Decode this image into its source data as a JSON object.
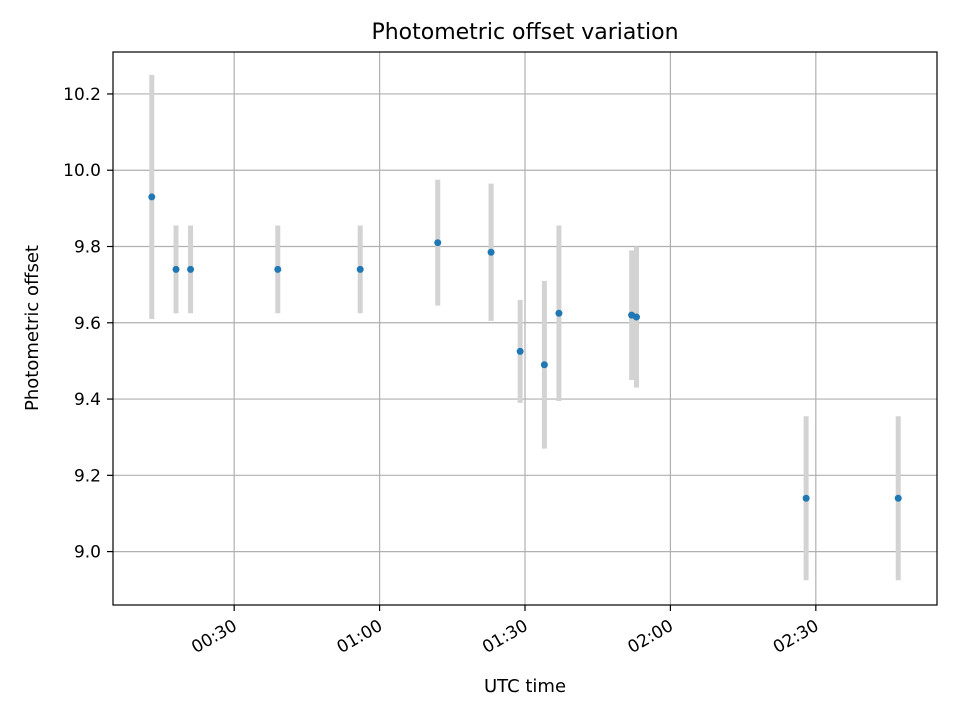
{
  "chart_data": {
    "type": "scatter",
    "title": "Photometric offset variation",
    "xlabel": "UTC time",
    "ylabel": "Photometric offset",
    "x_ticks": [
      "00:30",
      "01:00",
      "01:30",
      "02:00",
      "02:30"
    ],
    "y_ticks": [
      "9.0",
      "9.2",
      "9.4",
      "9.6",
      "9.8",
      "10.0",
      "10.2"
    ],
    "xlim": [
      "00:05",
      "02:55"
    ],
    "ylim": [
      8.86,
      10.31
    ],
    "grid": true,
    "point_color": "#1f77b4",
    "errorbar_color": "#d3d3d3",
    "points": [
      {
        "x": "00:13",
        "y": 9.93,
        "err": 0.32
      },
      {
        "x": "00:18",
        "y": 9.74,
        "err": 0.115
      },
      {
        "x": "00:21",
        "y": 9.74,
        "err": 0.115
      },
      {
        "x": "00:39",
        "y": 9.74,
        "err": 0.115
      },
      {
        "x": "00:56",
        "y": 9.74,
        "err": 0.115
      },
      {
        "x": "01:12",
        "y": 9.81,
        "err": 0.165
      },
      {
        "x": "01:23",
        "y": 9.785,
        "err": 0.18
      },
      {
        "x": "01:29",
        "y": 9.525,
        "err": 0.135
      },
      {
        "x": "01:34",
        "y": 9.49,
        "err": 0.22
      },
      {
        "x": "01:37",
        "y": 9.625,
        "err": 0.23
      },
      {
        "x": "01:52",
        "y": 9.62,
        "err": 0.17
      },
      {
        "x": "01:53",
        "y": 9.615,
        "err": 0.185
      },
      {
        "x": "02:28",
        "y": 9.14,
        "err": 0.215
      },
      {
        "x": "02:47",
        "y": 9.14,
        "err": 0.215
      }
    ]
  }
}
